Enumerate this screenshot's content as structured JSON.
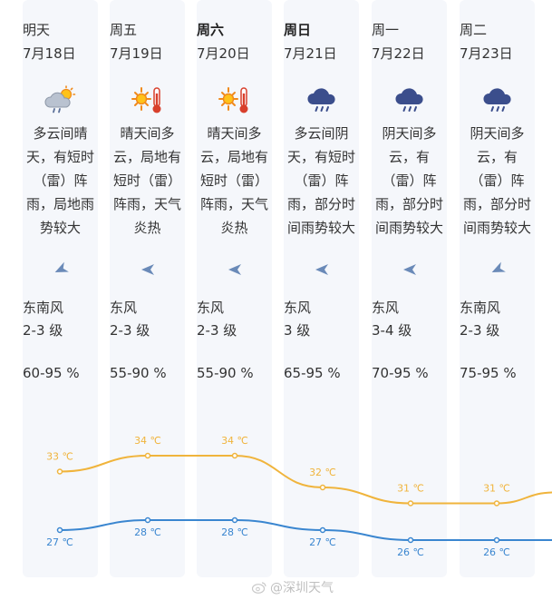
{
  "days": [
    {
      "day": "明天",
      "date": "7月18日",
      "bold": false,
      "weather_icon": "cloudy-sun-rain-icon",
      "desc": "多云间晴天，有短时（雷）阵雨，局地雨势较大",
      "wind_icon": "wind-arrow-southeast-icon",
      "wind_dir": "东南风",
      "wind_level": "2-3 级",
      "humidity": "60-95 %"
    },
    {
      "day": "周五",
      "date": "7月19日",
      "bold": false,
      "weather_icon": "sunny-hot-icon",
      "desc": "晴天间多云，局地有短时（雷）阵雨，天气炎热",
      "wind_icon": "wind-arrow-east-icon",
      "wind_dir": "东风",
      "wind_level": "2-3 级",
      "humidity": "55-90 %"
    },
    {
      "day": "周六",
      "date": "7月20日",
      "bold": true,
      "weather_icon": "sunny-hot-icon",
      "desc": "晴天间多云，局地有短时（雷）阵雨，天气炎热",
      "wind_icon": "wind-arrow-east-icon",
      "wind_dir": "东风",
      "wind_level": "2-3 级",
      "humidity": "55-90 %"
    },
    {
      "day": "周日",
      "date": "7月21日",
      "bold": true,
      "weather_icon": "rain-cloud-icon",
      "desc": "多云间阴天，有短时（雷）阵雨，部分时间雨势较大",
      "wind_icon": "wind-arrow-east-icon",
      "wind_dir": "东风",
      "wind_level": "3 级",
      "humidity": "65-95 %"
    },
    {
      "day": "周一",
      "date": "7月22日",
      "bold": false,
      "weather_icon": "rain-cloud-icon",
      "desc": "阴天间多云，有（雷）阵雨，部分时间雨势较大",
      "wind_icon": "wind-arrow-east-icon",
      "wind_dir": "东风",
      "wind_level": "3-4 级",
      "humidity": "70-95 %"
    },
    {
      "day": "周二",
      "date": "7月23日",
      "bold": false,
      "weather_icon": "rain-cloud-icon",
      "desc": "阴天间多云，有（雷）阵雨，部分时间雨势较大",
      "wind_icon": "wind-arrow-southeast-icon",
      "wind_dir": "东南风",
      "wind_level": "2-3 级",
      "humidity": "75-95 %"
    }
  ],
  "chart_data": {
    "type": "line",
    "x": [
      "7月18日",
      "7月19日",
      "7月20日",
      "7月21日",
      "7月22日",
      "7月23日"
    ],
    "series": [
      {
        "values": [
          33,
          34,
          34,
          32,
          31,
          31
        ],
        "labels": [
          "33 ℃",
          "34 ℃",
          "34 ℃",
          "32 ℃",
          "31 ℃",
          "31 ℃"
        ],
        "color": "#f0b43c"
      },
      {
        "values": [
          27,
          28,
          28,
          27,
          26,
          26
        ],
        "labels": [
          "27 ℃",
          "28 ℃",
          "28 ℃",
          "27 ℃",
          "26 ℃",
          "26 ℃"
        ],
        "color": "#3a86d0"
      }
    ]
  },
  "watermark": "@深圳天气"
}
